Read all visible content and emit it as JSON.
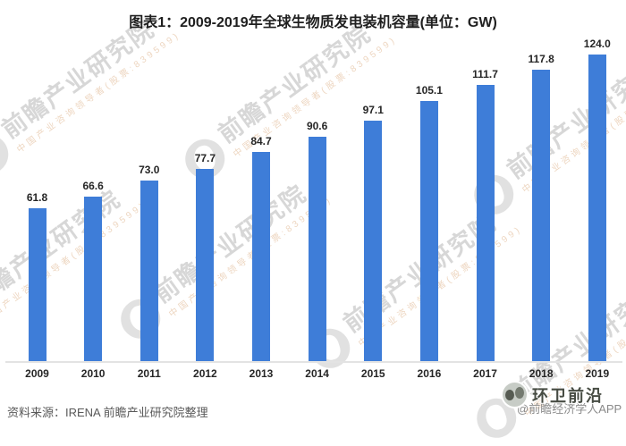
{
  "title": "图表1：2009-2019年全球生物质发电装机容量(单位：GW)",
  "chart_data": {
    "type": "bar",
    "title": "图表1：2009-2019年全球生物质发电装机容量(单位：GW)",
    "categories": [
      "2009",
      "2010",
      "2011",
      "2012",
      "2013",
      "2014",
      "2015",
      "2016",
      "2017",
      "2018",
      "2019"
    ],
    "values": [
      61.8,
      66.6,
      73.0,
      77.7,
      84.7,
      90.6,
      97.1,
      105.1,
      111.7,
      117.8,
      124.0
    ],
    "value_labels": [
      "61.8",
      "66.6",
      "73.0",
      "77.7",
      "84.7",
      "90.6",
      "97.1",
      "105.1",
      "111.7",
      "117.8",
      "124.0"
    ],
    "unit": "GW",
    "xlabel": "",
    "ylabel": "",
    "ylim": [
      0,
      135
    ],
    "grid": false,
    "legend": "none",
    "bar_color": "#3E7DD8"
  },
  "watermark": {
    "main": "前瞻产业研究院",
    "sub": "中国产业咨询领导者(股票:839599)"
  },
  "source": {
    "label": "资料来源：IRENA 前瞻产业研究院整理"
  },
  "footer": {
    "brand": "环卫前沿",
    "credit": "@前瞻经济学人APP"
  },
  "colors": {
    "bar": "#3E7DD8",
    "axis_line": "#E3E3E3",
    "data_label": "#262626",
    "source_text": "#595959",
    "credit_text": "#8A8A8A"
  }
}
